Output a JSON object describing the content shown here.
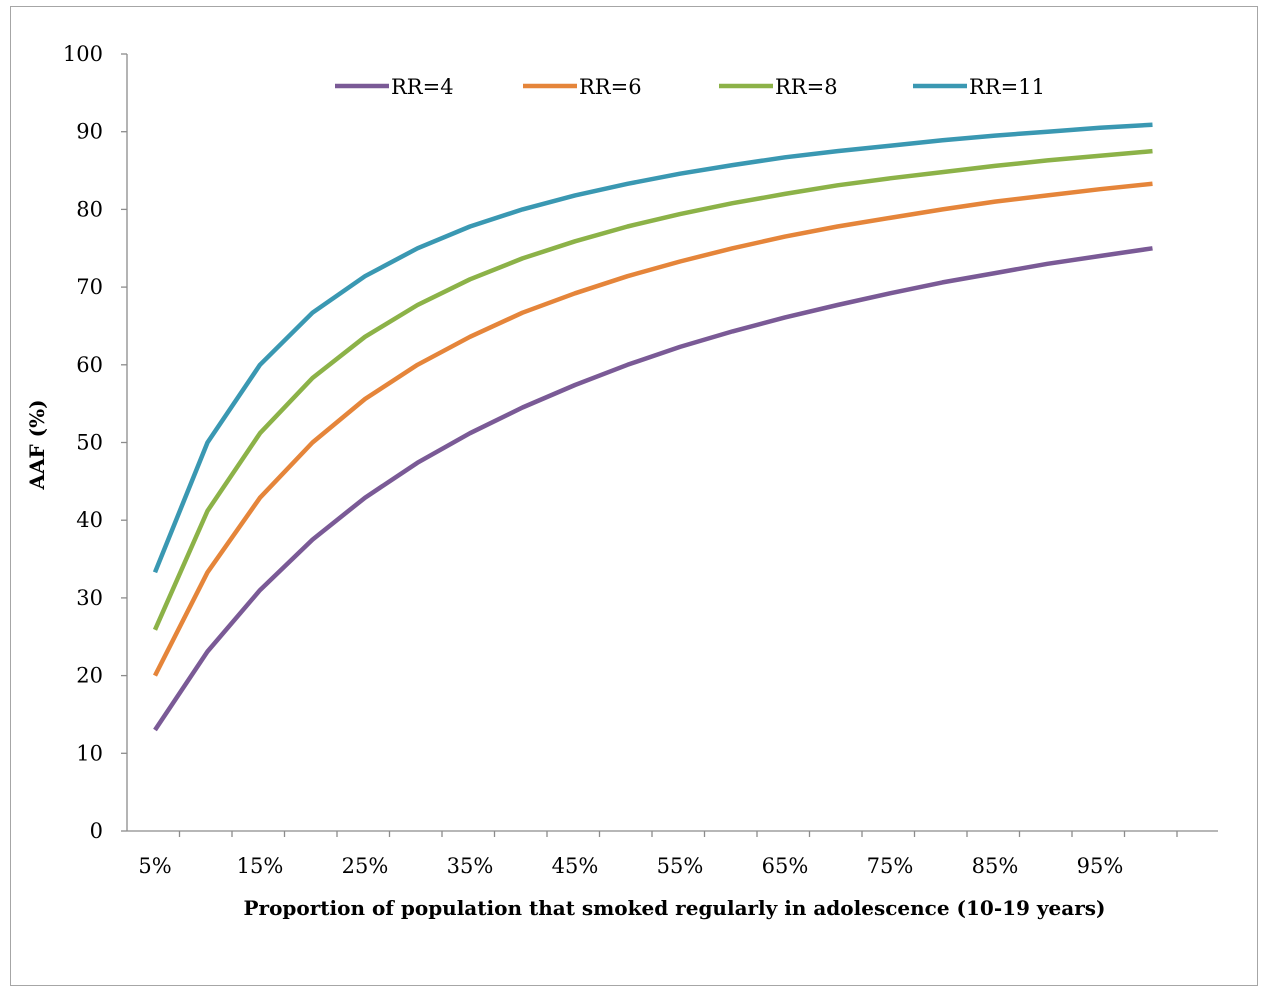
{
  "chart_data": {
    "type": "line",
    "title": "",
    "xlabel": "Proportion of population that smoked regularly in adolescence (10-19 years)",
    "ylabel": "AAF (%)",
    "ylim": [
      0,
      100
    ],
    "y_ticks": [
      0,
      10,
      20,
      30,
      40,
      50,
      60,
      70,
      80,
      90,
      100
    ],
    "x": [
      "5%",
      "10%",
      "15%",
      "20%",
      "25%",
      "30%",
      "35%",
      "40%",
      "45%",
      "50%",
      "55%",
      "60%",
      "65%",
      "70%",
      "75%",
      "80%",
      "85%",
      "90%",
      "95%",
      "100%"
    ],
    "x_tick_labels": [
      "5%",
      "15%",
      "25%",
      "35%",
      "45%",
      "55%",
      "65%",
      "75%",
      "85%",
      "95%"
    ],
    "grid": false,
    "legend_position": "top",
    "series": [
      {
        "name": "RR=4",
        "color": "#7a5a96",
        "values": [
          13.0,
          23.1,
          31.0,
          37.5,
          42.9,
          47.4,
          51.2,
          54.5,
          57.4,
          60.0,
          62.3,
          64.3,
          66.1,
          67.7,
          69.2,
          70.6,
          71.8,
          73.0,
          74.0,
          75.0
        ]
      },
      {
        "name": "RR=6",
        "color": "#e5853a",
        "values": [
          20.0,
          33.3,
          42.9,
          50.0,
          55.6,
          60.0,
          63.6,
          66.7,
          69.2,
          71.4,
          73.3,
          75.0,
          76.5,
          77.8,
          78.9,
          80.0,
          81.0,
          81.8,
          82.6,
          83.3
        ]
      },
      {
        "name": "RR=8",
        "color": "#8cb248",
        "values": [
          25.9,
          41.2,
          51.2,
          58.3,
          63.6,
          67.7,
          71.0,
          73.7,
          75.9,
          77.8,
          79.4,
          80.8,
          82.0,
          83.1,
          84.0,
          84.8,
          85.6,
          86.3,
          86.9,
          87.5
        ]
      },
      {
        "name": "RR=11",
        "color": "#3a98b2",
        "values": [
          33.3,
          50.0,
          60.0,
          66.7,
          71.4,
          75.0,
          77.8,
          80.0,
          81.8,
          83.3,
          84.6,
          85.7,
          86.7,
          87.5,
          88.2,
          88.9,
          89.5,
          90.0,
          90.5,
          90.9
        ]
      }
    ]
  }
}
